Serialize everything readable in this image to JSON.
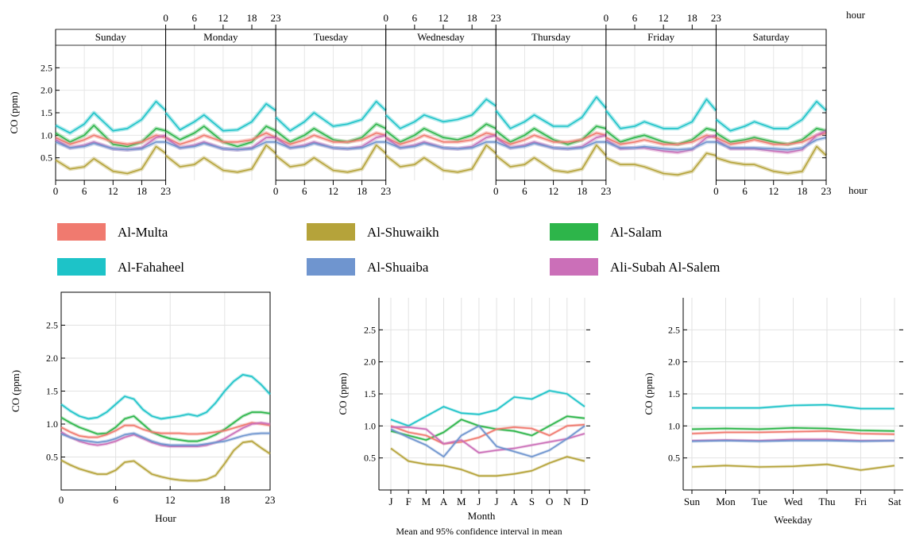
{
  "colors": {
    "Al-Multa": "#f07a6f",
    "Al-Shuwaikh": "#b5a33a",
    "Al-Salam": "#2db54a",
    "Al-Fahaheel": "#1dc3c8",
    "Al-Shuaiba": "#6f95cf",
    "Ali-Subah Al-Salem": "#cb6fb8"
  },
  "legend": [
    "Al-Multa",
    "Al-Shuwaikh",
    "Al-Salam",
    "Al-Fahaheel",
    "Al-Shuaiba",
    "Ali-Subah Al-Salem"
  ],
  "caption": "Mean and 95% confidence interval in mean",
  "chart_data": [
    {
      "type": "line",
      "ylabel": "CO (ppm)",
      "hour_label": "hour",
      "ylim": [
        0,
        3
      ],
      "yticks": [
        0.5,
        1.0,
        1.5,
        2.0,
        2.5
      ],
      "hour_ticks": [
        0,
        6,
        12,
        18,
        23
      ],
      "panels": [
        "Sunday",
        "Monday",
        "Tuesday",
        "Wednesday",
        "Thursday",
        "Friday",
        "Saturday"
      ],
      "x": [
        0,
        3,
        6,
        8,
        12,
        15,
        18,
        21,
        23
      ],
      "series": [
        {
          "name": "Al-Fahaheel",
          "values": [
            [
              1.22,
              1.05,
              1.25,
              1.5,
              1.1,
              1.15,
              1.35,
              1.75,
              1.55
            ],
            [
              1.5,
              1.12,
              1.3,
              1.45,
              1.1,
              1.12,
              1.3,
              1.7,
              1.55
            ],
            [
              1.4,
              1.1,
              1.3,
              1.5,
              1.2,
              1.25,
              1.35,
              1.75,
              1.55
            ],
            [
              1.45,
              1.15,
              1.3,
              1.45,
              1.3,
              1.35,
              1.45,
              1.8,
              1.65
            ],
            [
              1.55,
              1.15,
              1.3,
              1.45,
              1.2,
              1.2,
              1.4,
              1.85,
              1.6
            ],
            [
              1.55,
              1.15,
              1.2,
              1.3,
              1.15,
              1.15,
              1.3,
              1.8,
              1.55
            ],
            [
              1.35,
              1.1,
              1.2,
              1.3,
              1.15,
              1.15,
              1.35,
              1.75,
              1.55
            ]
          ]
        },
        {
          "name": "Al-Salam",
          "values": [
            [
              1.05,
              0.85,
              1.0,
              1.22,
              0.8,
              0.75,
              0.85,
              1.15,
              1.1
            ],
            [
              1.1,
              0.9,
              1.05,
              1.2,
              0.85,
              0.75,
              0.85,
              1.2,
              1.1
            ],
            [
              1.1,
              0.85,
              1.0,
              1.15,
              0.9,
              0.85,
              0.95,
              1.25,
              1.15
            ],
            [
              1.1,
              0.85,
              1.0,
              1.15,
              0.95,
              0.9,
              1.0,
              1.25,
              1.15
            ],
            [
              1.1,
              0.85,
              1.0,
              1.15,
              0.9,
              0.8,
              0.9,
              1.2,
              1.15
            ],
            [
              1.1,
              0.85,
              0.95,
              1.0,
              0.85,
              0.8,
              0.9,
              1.15,
              1.1
            ],
            [
              1.05,
              0.85,
              0.9,
              0.95,
              0.85,
              0.8,
              0.9,
              1.15,
              1.1
            ]
          ]
        },
        {
          "name": "Al-Multa",
          "values": [
            [
              0.95,
              0.8,
              0.9,
              1.0,
              0.85,
              0.8,
              0.85,
              1.0,
              0.95
            ],
            [
              0.95,
              0.8,
              0.9,
              1.0,
              0.85,
              0.85,
              0.9,
              1.05,
              0.95
            ],
            [
              0.95,
              0.8,
              0.9,
              1.0,
              0.85,
              0.85,
              0.9,
              1.05,
              1.0
            ],
            [
              0.95,
              0.8,
              0.9,
              1.0,
              0.85,
              0.85,
              0.9,
              1.05,
              1.0
            ],
            [
              0.95,
              0.8,
              0.9,
              1.0,
              0.85,
              0.85,
              0.9,
              1.05,
              1.0
            ],
            [
              0.95,
              0.8,
              0.85,
              0.9,
              0.8,
              0.8,
              0.85,
              1.0,
              0.95
            ],
            [
              0.95,
              0.8,
              0.85,
              0.9,
              0.8,
              0.8,
              0.85,
              1.0,
              1.05
            ]
          ]
        },
        {
          "name": "Ali-Subah Al-Salem",
          "values": [
            [
              0.9,
              0.72,
              0.78,
              0.85,
              0.7,
              0.68,
              0.72,
              0.95,
              1.0
            ],
            [
              0.95,
              0.72,
              0.78,
              0.85,
              0.7,
              0.68,
              0.72,
              0.95,
              0.95
            ],
            [
              0.95,
              0.72,
              0.78,
              0.85,
              0.72,
              0.7,
              0.75,
              0.95,
              1.0
            ],
            [
              0.95,
              0.72,
              0.78,
              0.85,
              0.72,
              0.7,
              0.75,
              0.95,
              1.0
            ],
            [
              0.95,
              0.72,
              0.78,
              0.85,
              0.72,
              0.7,
              0.75,
              0.95,
              1.0
            ],
            [
              0.9,
              0.7,
              0.72,
              0.72,
              0.65,
              0.62,
              0.68,
              0.95,
              1.0
            ],
            [
              0.9,
              0.7,
              0.7,
              0.7,
              0.65,
              0.62,
              0.68,
              1.0,
              1.1
            ]
          ]
        },
        {
          "name": "Al-Shuaiba",
          "values": [
            [
              0.85,
              0.72,
              0.75,
              0.82,
              0.7,
              0.68,
              0.7,
              0.85,
              0.85
            ],
            [
              0.85,
              0.72,
              0.75,
              0.82,
              0.7,
              0.68,
              0.7,
              0.85,
              0.85
            ],
            [
              0.85,
              0.72,
              0.75,
              0.82,
              0.72,
              0.7,
              0.72,
              0.85,
              0.85
            ],
            [
              0.85,
              0.72,
              0.75,
              0.82,
              0.72,
              0.7,
              0.72,
              0.85,
              0.85
            ],
            [
              0.85,
              0.72,
              0.75,
              0.82,
              0.72,
              0.7,
              0.72,
              0.85,
              0.85
            ],
            [
              0.85,
              0.72,
              0.72,
              0.75,
              0.7,
              0.68,
              0.7,
              0.85,
              0.85
            ],
            [
              0.85,
              0.72,
              0.72,
              0.72,
              0.7,
              0.68,
              0.72,
              0.9,
              0.95
            ]
          ]
        },
        {
          "name": "Al-Shuwaikh",
          "values": [
            [
              0.45,
              0.25,
              0.3,
              0.48,
              0.2,
              0.15,
              0.25,
              0.75,
              0.6
            ],
            [
              0.55,
              0.3,
              0.35,
              0.5,
              0.22,
              0.18,
              0.25,
              0.78,
              0.6
            ],
            [
              0.55,
              0.3,
              0.35,
              0.5,
              0.22,
              0.18,
              0.25,
              0.78,
              0.6
            ],
            [
              0.55,
              0.3,
              0.35,
              0.5,
              0.22,
              0.18,
              0.25,
              0.78,
              0.6
            ],
            [
              0.55,
              0.3,
              0.35,
              0.5,
              0.22,
              0.18,
              0.25,
              0.78,
              0.55
            ],
            [
              0.5,
              0.35,
              0.35,
              0.3,
              0.15,
              0.12,
              0.2,
              0.6,
              0.55
            ],
            [
              0.5,
              0.4,
              0.35,
              0.35,
              0.2,
              0.15,
              0.2,
              0.75,
              0.55
            ]
          ]
        }
      ]
    },
    {
      "type": "line",
      "xlabel": "Hour",
      "ylabel": "CO (ppm)",
      "ylim": [
        0,
        3
      ],
      "yticks": [
        0.5,
        1.0,
        1.5,
        2.0,
        2.5
      ],
      "xticks": [
        0,
        6,
        12,
        18,
        23
      ],
      "x": [
        0,
        1,
        2,
        3,
        4,
        5,
        6,
        7,
        8,
        9,
        10,
        11,
        12,
        13,
        14,
        15,
        16,
        17,
        18,
        19,
        20,
        21,
        22,
        23
      ],
      "series": [
        {
          "name": "Al-Fahaheel",
          "values": [
            1.3,
            1.2,
            1.12,
            1.08,
            1.1,
            1.18,
            1.3,
            1.42,
            1.38,
            1.22,
            1.12,
            1.08,
            1.1,
            1.12,
            1.15,
            1.12,
            1.18,
            1.32,
            1.5,
            1.65,
            1.75,
            1.72,
            1.6,
            1.45
          ]
        },
        {
          "name": "Al-Salam",
          "values": [
            1.1,
            1.02,
            0.95,
            0.9,
            0.85,
            0.86,
            0.95,
            1.08,
            1.12,
            1.0,
            0.88,
            0.82,
            0.78,
            0.76,
            0.74,
            0.74,
            0.78,
            0.84,
            0.92,
            1.02,
            1.12,
            1.18,
            1.18,
            1.16
          ]
        },
        {
          "name": "Al-Multa",
          "values": [
            0.95,
            0.88,
            0.82,
            0.8,
            0.8,
            0.84,
            0.9,
            0.98,
            0.98,
            0.92,
            0.88,
            0.86,
            0.86,
            0.86,
            0.85,
            0.85,
            0.86,
            0.88,
            0.9,
            0.94,
            0.98,
            1.02,
            1.0,
            0.98
          ]
        },
        {
          "name": "Ali-Subah Al-Salem",
          "values": [
            0.88,
            0.8,
            0.74,
            0.7,
            0.68,
            0.7,
            0.74,
            0.8,
            0.84,
            0.78,
            0.72,
            0.68,
            0.66,
            0.66,
            0.66,
            0.66,
            0.68,
            0.72,
            0.78,
            0.86,
            0.94,
            1.0,
            1.02,
            1.0
          ]
        },
        {
          "name": "Al-Shuaiba",
          "values": [
            0.85,
            0.8,
            0.76,
            0.74,
            0.72,
            0.74,
            0.78,
            0.84,
            0.86,
            0.8,
            0.74,
            0.7,
            0.68,
            0.68,
            0.68,
            0.68,
            0.7,
            0.72,
            0.74,
            0.78,
            0.82,
            0.85,
            0.86,
            0.86
          ]
        },
        {
          "name": "Al-Shuwaikh",
          "values": [
            0.45,
            0.38,
            0.32,
            0.28,
            0.24,
            0.24,
            0.3,
            0.42,
            0.44,
            0.34,
            0.24,
            0.2,
            0.17,
            0.15,
            0.14,
            0.14,
            0.16,
            0.22,
            0.4,
            0.6,
            0.72,
            0.74,
            0.64,
            0.55
          ]
        }
      ]
    },
    {
      "type": "line",
      "xlabel": "Month",
      "ylabel": "CO (ppm)",
      "ylim": [
        0,
        3
      ],
      "yticks": [
        0.5,
        1.0,
        1.5,
        2.0,
        2.5
      ],
      "categories": [
        "J",
        "F",
        "M",
        "A",
        "M",
        "J",
        "J",
        "A",
        "S",
        "O",
        "N",
        "D"
      ],
      "series": [
        {
          "name": "Al-Fahaheel",
          "values": [
            1.1,
            1.0,
            1.15,
            1.3,
            1.2,
            1.18,
            1.25,
            1.45,
            1.42,
            1.55,
            1.5,
            1.3
          ]
        },
        {
          "name": "Al-Salam",
          "values": [
            0.92,
            0.85,
            0.78,
            0.9,
            1.1,
            1.0,
            0.95,
            0.92,
            0.85,
            1.0,
            1.15,
            1.12
          ]
        },
        {
          "name": "Al-Multa",
          "values": [
            1.0,
            0.9,
            0.85,
            0.72,
            0.75,
            0.82,
            0.95,
            0.98,
            0.96,
            0.85,
            1.0,
            1.02
          ]
        },
        {
          "name": "Ali-Subah Al-Salem",
          "values": [
            0.98,
            0.98,
            0.95,
            0.72,
            0.78,
            0.58,
            0.62,
            0.65,
            0.7,
            0.75,
            0.8,
            0.88
          ]
        },
        {
          "name": "Al-Shuaiba",
          "values": [
            0.95,
            0.82,
            0.7,
            0.52,
            0.85,
            1.0,
            0.68,
            0.6,
            0.52,
            0.62,
            0.8,
            1.0
          ]
        },
        {
          "name": "Al-Shuwaikh",
          "values": [
            0.65,
            0.45,
            0.4,
            0.38,
            0.32,
            0.22,
            0.22,
            0.25,
            0.3,
            0.42,
            0.52,
            0.45
          ]
        }
      ]
    },
    {
      "type": "line",
      "xlabel": "Weekday",
      "ylabel": "CO (ppm)",
      "ylim": [
        0,
        3
      ],
      "yticks": [
        0.5,
        1.0,
        1.5,
        2.0,
        2.5
      ],
      "categories": [
        "Sun",
        "Mon",
        "Tue",
        "Wed",
        "Thu",
        "Fri",
        "Sat"
      ],
      "series": [
        {
          "name": "Al-Fahaheel",
          "values": [
            1.28,
            1.28,
            1.28,
            1.32,
            1.33,
            1.27,
            1.27
          ]
        },
        {
          "name": "Al-Salam",
          "values": [
            0.95,
            0.96,
            0.95,
            0.97,
            0.96,
            0.93,
            0.92
          ]
        },
        {
          "name": "Al-Multa",
          "values": [
            0.88,
            0.9,
            0.9,
            0.91,
            0.92,
            0.88,
            0.87
          ]
        },
        {
          "name": "Ali-Subah Al-Salem",
          "values": [
            0.77,
            0.78,
            0.77,
            0.79,
            0.79,
            0.77,
            0.77
          ]
        },
        {
          "name": "Al-Shuaiba",
          "values": [
            0.76,
            0.77,
            0.76,
            0.77,
            0.77,
            0.76,
            0.77
          ]
        },
        {
          "name": "Al-Shuwaikh",
          "values": [
            0.36,
            0.38,
            0.36,
            0.37,
            0.4,
            0.31,
            0.38
          ]
        }
      ]
    }
  ]
}
